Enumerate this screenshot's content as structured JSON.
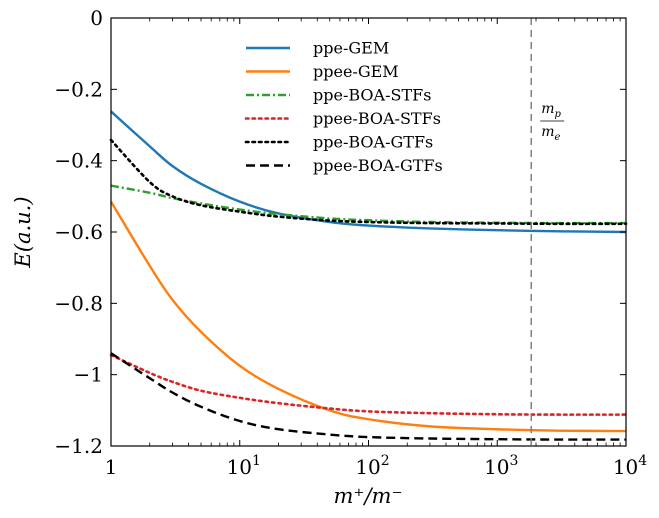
{
  "chart_data": {
    "type": "line",
    "xscale": "log",
    "xlim": [
      1,
      10000
    ],
    "ylim": [
      -1.2,
      0
    ],
    "xlabel": "m⁺/m⁻",
    "ylabel": "E(a.u.)",
    "xticks": [
      {
        "value": 1,
        "base": "1",
        "exp": ""
      },
      {
        "value": 10,
        "base": "10",
        "exp": "1"
      },
      {
        "value": 100,
        "base": "10",
        "exp": "2"
      },
      {
        "value": 1000,
        "base": "10",
        "exp": "3"
      },
      {
        "value": 10000,
        "base": "10",
        "exp": "4"
      }
    ],
    "yticks": [
      {
        "value": 0,
        "label": "0"
      },
      {
        "value": -0.2,
        "label": "−0.2"
      },
      {
        "value": -0.4,
        "label": "−0.4"
      },
      {
        "value": -0.6,
        "label": "−0.6"
      },
      {
        "value": -0.8,
        "label": "−0.8"
      },
      {
        "value": -1,
        "label": "−1"
      },
      {
        "value": -1.2,
        "label": "−1.2"
      }
    ],
    "grid": false,
    "legend_position": "top-center",
    "annotation": {
      "x": 1836,
      "numerator": "m",
      "numerator_sub": "p",
      "denominator": "m",
      "denominator_sub": "e"
    },
    "series": [
      {
        "name": "ppe-GEM",
        "color": "#1f77b4",
        "style": "solid",
        "x": [
          1,
          2,
          3,
          5,
          10,
          20,
          50,
          100,
          300,
          1000,
          3000,
          10000
        ],
        "y": [
          -0.262,
          -0.36,
          -0.415,
          -0.465,
          -0.515,
          -0.548,
          -0.572,
          -0.582,
          -0.59,
          -0.595,
          -0.598,
          -0.6
        ]
      },
      {
        "name": "ppee-GEM",
        "color": "#ff7f0e",
        "style": "solid",
        "x": [
          1,
          2,
          3,
          5,
          10,
          20,
          50,
          100,
          300,
          1000,
          3000,
          10000
        ],
        "y": [
          -0.515,
          -0.695,
          -0.79,
          -0.88,
          -0.975,
          -1.04,
          -1.1,
          -1.125,
          -1.145,
          -1.153,
          -1.157,
          -1.158
        ]
      },
      {
        "name": "ppe-BOA-STFs",
        "color": "#2ca02c",
        "style": "dashdot",
        "x": [
          1,
          2,
          3,
          5,
          10,
          20,
          50,
          100,
          300,
          1000,
          3000,
          10000
        ],
        "y": [
          -0.47,
          -0.49,
          -0.505,
          -0.52,
          -0.537,
          -0.55,
          -0.562,
          -0.567,
          -0.572,
          -0.574,
          -0.575,
          -0.575
        ]
      },
      {
        "name": "ppee-BOA-STFs",
        "color": "#d62728",
        "style": "dotted",
        "x": [
          1,
          2,
          3,
          5,
          10,
          20,
          50,
          100,
          300,
          1000,
          3000,
          10000
        ],
        "y": [
          -0.945,
          -0.995,
          -1.02,
          -1.045,
          -1.065,
          -1.08,
          -1.095,
          -1.103,
          -1.108,
          -1.111,
          -1.112,
          -1.112
        ]
      },
      {
        "name": "ppe-BOA-GTFs",
        "color": "#000000",
        "style": "dotted",
        "x": [
          1,
          2,
          3,
          5,
          10,
          20,
          50,
          100,
          300,
          1000,
          3000,
          10000
        ],
        "y": [
          -0.342,
          -0.46,
          -0.5,
          -0.525,
          -0.543,
          -0.557,
          -0.568,
          -0.572,
          -0.575,
          -0.576,
          -0.577,
          -0.577
        ]
      },
      {
        "name": "ppee-BOA-GTFs",
        "color": "#000000",
        "style": "dashed",
        "x": [
          1,
          2,
          3,
          5,
          10,
          20,
          50,
          100,
          300,
          1000,
          3000,
          10000
        ],
        "y": [
          -0.94,
          -1.01,
          -1.05,
          -1.09,
          -1.13,
          -1.153,
          -1.168,
          -1.175,
          -1.179,
          -1.181,
          -1.182,
          -1.182
        ]
      }
    ]
  }
}
